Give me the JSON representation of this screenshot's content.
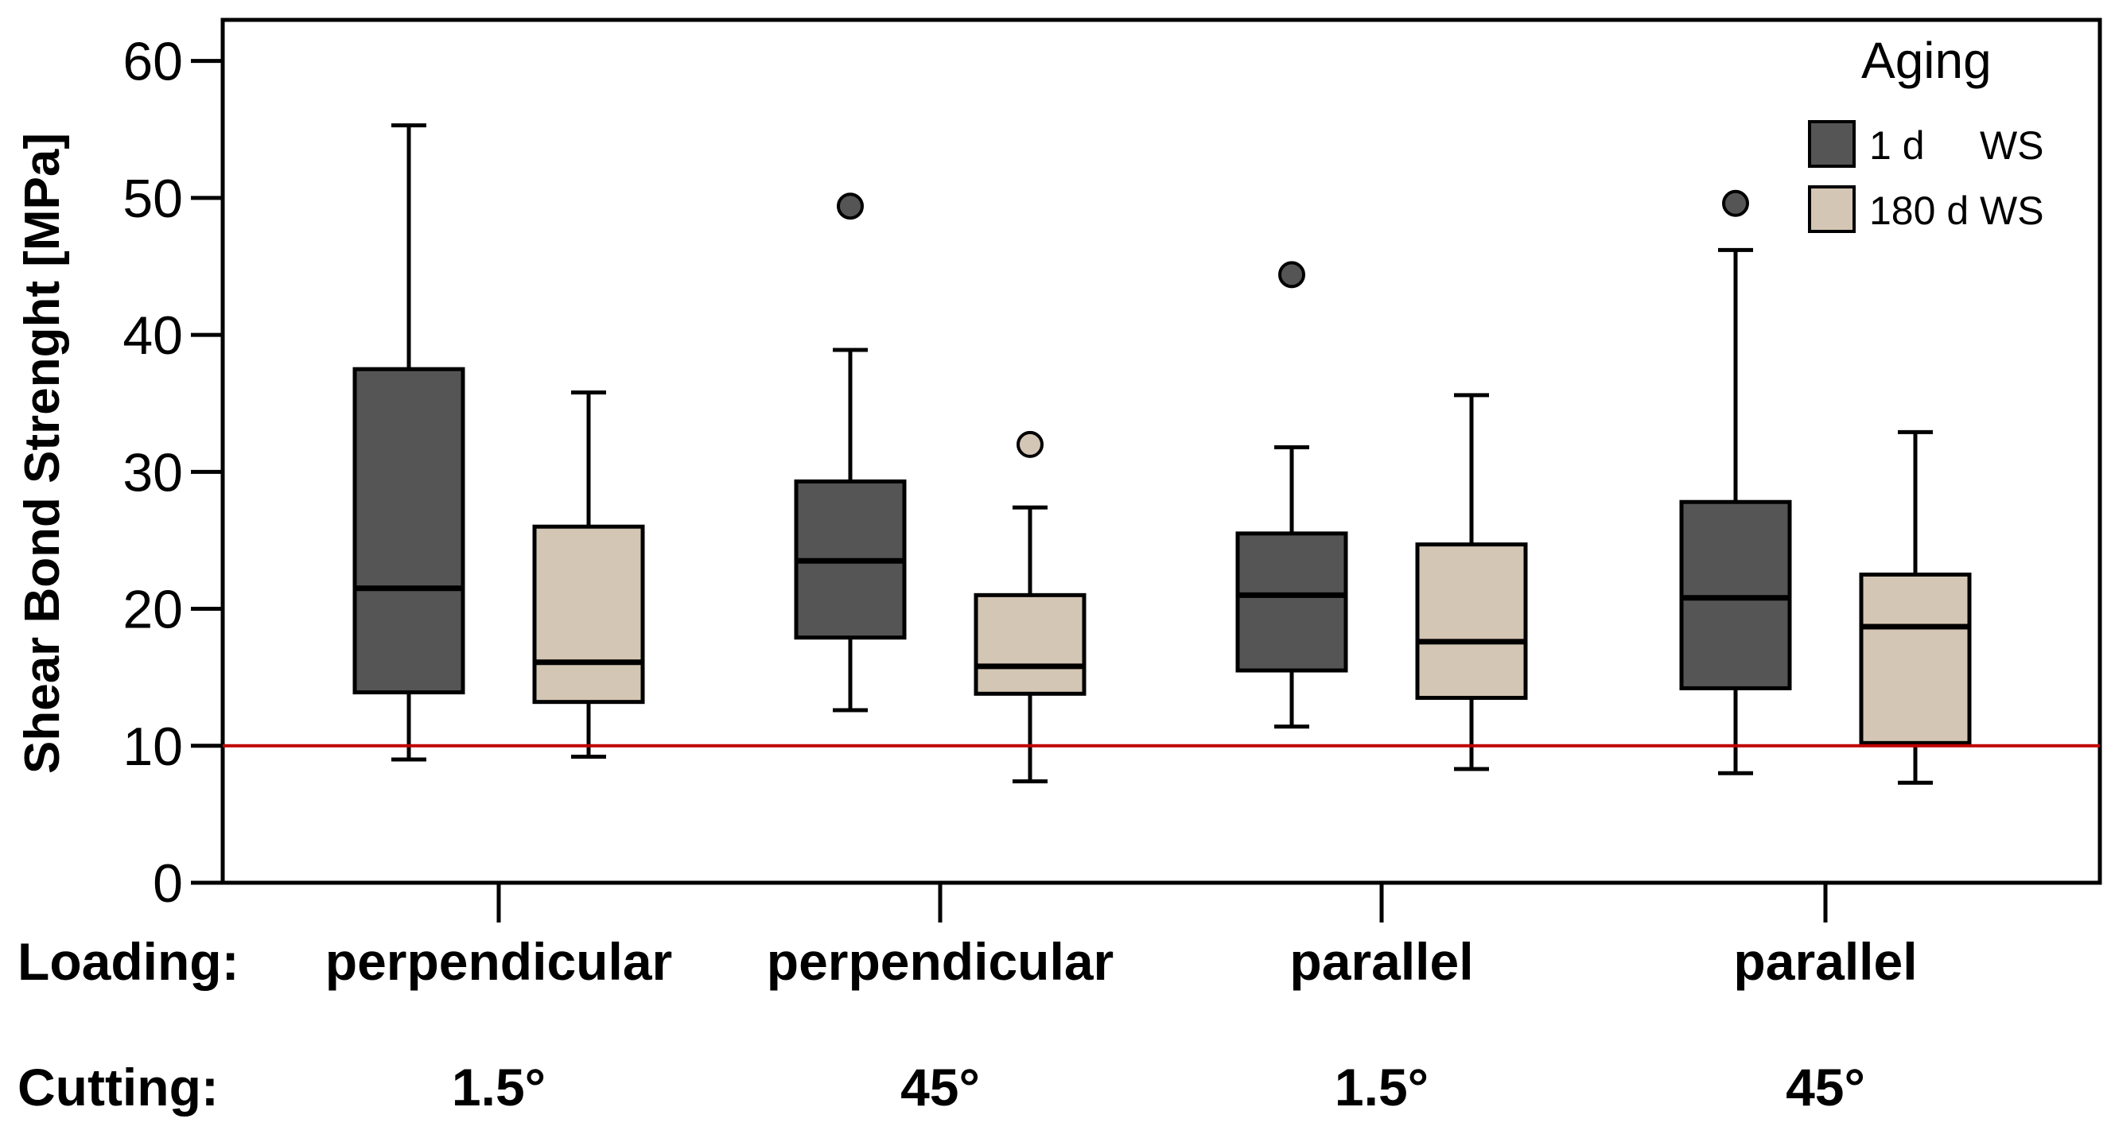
{
  "chart_data": {
    "type": "box",
    "title": "",
    "ylabel": "Shear Bond Strenght [MPa]",
    "xlabel": "",
    "ylim": [
      0,
      63
    ],
    "yticks": [
      0,
      10,
      20,
      30,
      40,
      50,
      60
    ],
    "reference_line": {
      "y": 10,
      "color": "#c00000"
    },
    "row_labels": {
      "loading": "Loading:",
      "cutting": "Cutting:"
    },
    "groups": [
      {
        "loading": "perpendicular",
        "cutting": "1.5°"
      },
      {
        "loading": "perpendicular",
        "cutting": "45°"
      },
      {
        "loading": "parallel",
        "cutting": "1.5°"
      },
      {
        "loading": "parallel",
        "cutting": "45°"
      }
    ],
    "legend": {
      "title": "Aging",
      "position": "top-right",
      "items": [
        {
          "label": "1 d     WS",
          "color": "#555555"
        },
        {
          "label": "180 d WS",
          "color": "#d4c6b4"
        }
      ]
    },
    "series": [
      {
        "name": "1 d WS",
        "color": "#555555",
        "boxes": [
          {
            "min": 9.0,
            "q1": 13.9,
            "median": 21.5,
            "q3": 37.5,
            "max": 55.3,
            "outliers": []
          },
          {
            "min": 12.6,
            "q1": 17.9,
            "median": 23.5,
            "q3": 29.3,
            "max": 38.9,
            "outliers": [
              49.4
            ]
          },
          {
            "min": 11.4,
            "q1": 15.5,
            "median": 21.0,
            "q3": 25.5,
            "max": 31.8,
            "outliers": [
              44.4
            ]
          },
          {
            "min": 8.0,
            "q1": 14.2,
            "median": 20.8,
            "q3": 27.8,
            "max": 46.2,
            "outliers": [
              49.6
            ]
          }
        ]
      },
      {
        "name": "180 d WS",
        "color": "#d4c6b4",
        "boxes": [
          {
            "min": 9.2,
            "q1": 13.2,
            "median": 16.1,
            "q3": 26.0,
            "max": 35.8,
            "outliers": []
          },
          {
            "min": 7.4,
            "q1": 13.8,
            "median": 15.8,
            "q3": 21.0,
            "max": 27.4,
            "outliers": [
              32.0
            ]
          },
          {
            "min": 8.3,
            "q1": 13.5,
            "median": 17.6,
            "q3": 24.7,
            "max": 35.6,
            "outliers": []
          },
          {
            "min": 7.3,
            "q1": 10.2,
            "median": 18.7,
            "q3": 22.5,
            "max": 32.9,
            "outliers": []
          }
        ]
      }
    ]
  }
}
